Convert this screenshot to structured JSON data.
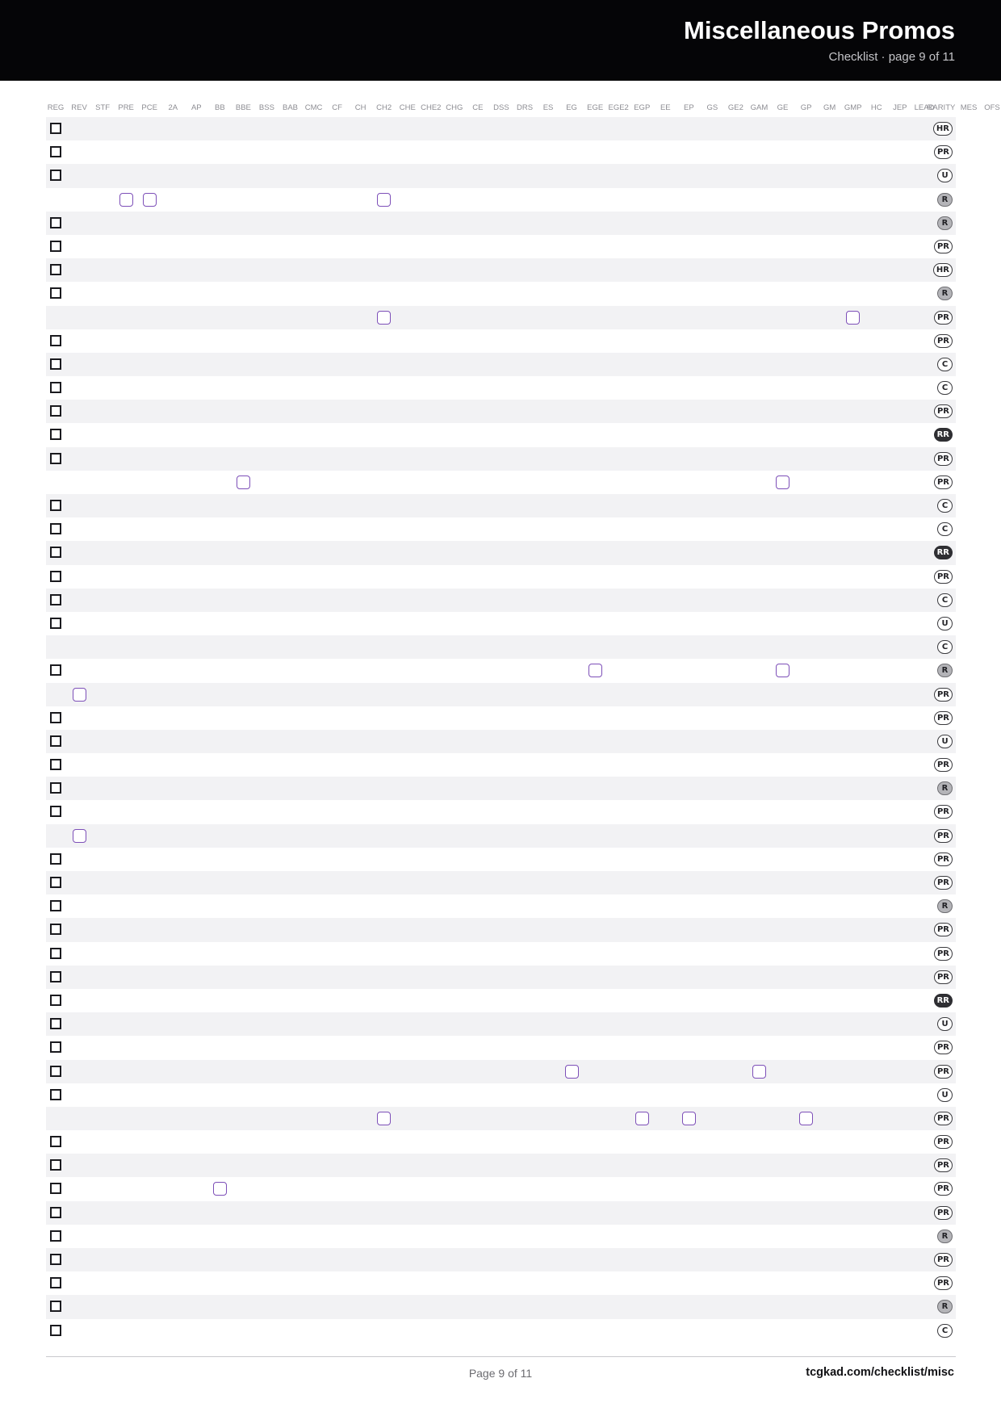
{
  "header": {
    "title": "Miscellaneous Promos",
    "subtitle": "Checklist · page 9 of 11"
  },
  "columns": [
    "REG",
    "REV",
    "STF",
    "PRE",
    "PCE",
    "2A",
    "AP",
    "BB",
    "BBE",
    "BSS",
    "BAB",
    "CMC",
    "CF",
    "CH",
    "CH2",
    "CHE",
    "CHE2",
    "CHG",
    "CE",
    "DSS",
    "DRS",
    "ES",
    "EG",
    "EGE",
    "EGE2",
    "EGP",
    "EE",
    "EP",
    "GS",
    "GE2",
    "GAM",
    "GE",
    "GP",
    "GM",
    "GMP",
    "HC",
    "JEP",
    "LEAD",
    "RARITY",
    "MES",
    "OFS"
  ],
  "rows": [
    {
      "reg": true,
      "variants": [],
      "rarity": "HR"
    },
    {
      "reg": true,
      "variants": [],
      "rarity": "PR"
    },
    {
      "reg": true,
      "variants": [],
      "rarity": "U"
    },
    {
      "reg": false,
      "variants": [
        "PRE",
        "PCE",
        "CH2"
      ],
      "rarity": "R"
    },
    {
      "reg": true,
      "variants": [],
      "rarity": "R"
    },
    {
      "reg": true,
      "variants": [],
      "rarity": "PR"
    },
    {
      "reg": true,
      "variants": [],
      "rarity": "HR"
    },
    {
      "reg": true,
      "variants": [],
      "rarity": "R"
    },
    {
      "reg": false,
      "variants": [
        "CH2",
        "GMP"
      ],
      "rarity": "PR"
    },
    {
      "reg": true,
      "variants": [],
      "rarity": "PR"
    },
    {
      "reg": true,
      "variants": [],
      "rarity": "C"
    },
    {
      "reg": true,
      "variants": [],
      "rarity": "C"
    },
    {
      "reg": true,
      "variants": [],
      "rarity": "PR"
    },
    {
      "reg": true,
      "variants": [],
      "rarity": "RR"
    },
    {
      "reg": true,
      "variants": [],
      "rarity": "PR"
    },
    {
      "reg": false,
      "variants": [
        "BBE",
        "GE"
      ],
      "rarity": "PR"
    },
    {
      "reg": true,
      "variants": [],
      "rarity": "C"
    },
    {
      "reg": true,
      "variants": [],
      "rarity": "C"
    },
    {
      "reg": true,
      "variants": [],
      "rarity": "RR"
    },
    {
      "reg": true,
      "variants": [],
      "rarity": "PR"
    },
    {
      "reg": true,
      "variants": [],
      "rarity": "C"
    },
    {
      "reg": true,
      "variants": [],
      "rarity": "U"
    },
    {
      "reg": false,
      "variants": [],
      "rarity": "C"
    },
    {
      "reg": true,
      "variants": [
        "EGE",
        "GE"
      ],
      "rarity": "R"
    },
    {
      "reg": false,
      "variants": [
        "REV"
      ],
      "rarity": "PR"
    },
    {
      "reg": true,
      "variants": [],
      "rarity": "PR"
    },
    {
      "reg": true,
      "variants": [],
      "rarity": "U"
    },
    {
      "reg": true,
      "variants": [],
      "rarity": "PR"
    },
    {
      "reg": true,
      "variants": [],
      "rarity": "R"
    },
    {
      "reg": true,
      "variants": [],
      "rarity": "PR"
    },
    {
      "reg": false,
      "variants": [
        "REV"
      ],
      "rarity": "PR"
    },
    {
      "reg": true,
      "variants": [],
      "rarity": "PR"
    },
    {
      "reg": true,
      "variants": [],
      "rarity": "PR"
    },
    {
      "reg": true,
      "variants": [],
      "rarity": "R"
    },
    {
      "reg": true,
      "variants": [],
      "rarity": "PR"
    },
    {
      "reg": true,
      "variants": [],
      "rarity": "PR"
    },
    {
      "reg": true,
      "variants": [],
      "rarity": "PR"
    },
    {
      "reg": true,
      "variants": [],
      "rarity": "RR"
    },
    {
      "reg": true,
      "variants": [],
      "rarity": "U"
    },
    {
      "reg": true,
      "variants": [],
      "rarity": "PR"
    },
    {
      "reg": true,
      "variants": [
        "EG",
        "GAM"
      ],
      "rarity": "PR"
    },
    {
      "reg": true,
      "variants": [],
      "rarity": "U"
    },
    {
      "reg": false,
      "variants": [
        "CH2",
        "EGP",
        "EP",
        "GP"
      ],
      "rarity": "PR"
    },
    {
      "reg": true,
      "variants": [],
      "rarity": "PR"
    },
    {
      "reg": true,
      "variants": [],
      "rarity": "PR"
    },
    {
      "reg": true,
      "variants": [
        "BB"
      ],
      "rarity": "PR"
    },
    {
      "reg": true,
      "variants": [],
      "rarity": "PR"
    },
    {
      "reg": true,
      "variants": [],
      "rarity": "R"
    },
    {
      "reg": true,
      "variants": [],
      "rarity": "PR"
    },
    {
      "reg": true,
      "variants": [],
      "rarity": "PR"
    },
    {
      "reg": true,
      "variants": [],
      "rarity": "R"
    },
    {
      "reg": true,
      "variants": [],
      "rarity": "C"
    }
  ],
  "footer": {
    "page_label": "Page 9 of 11",
    "url": "tcgkad.com/checklist/misc"
  }
}
